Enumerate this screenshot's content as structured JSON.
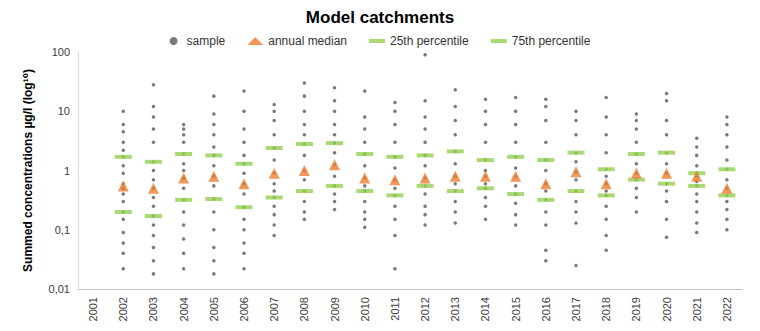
{
  "chart_data": {
    "type": "scatter",
    "title": "Model catchments",
    "y_label": "Summed concentrations µg/l (log¹⁰)",
    "log": "y",
    "grid": false,
    "legend": "top",
    "categories": [
      "2001",
      "2002",
      "2003",
      "2004",
      "2005",
      "2006",
      "2007",
      "2008",
      "2009",
      "2010",
      "2011",
      "2012",
      "2013",
      "2014",
      "2015",
      "2016",
      "2017",
      "2018",
      "2019",
      "2020",
      "2021",
      "2022"
    ],
    "ylim": [
      0.01,
      100
    ],
    "yticks": [
      {
        "value": 0.01,
        "label": "0,01"
      },
      {
        "value": 0.1,
        "label": "0,1"
      },
      1,
      10,
      100
    ],
    "series": [
      {
        "name": "sample",
        "marker": "circle",
        "color": "#595959",
        "values": [
          [],
          [
            10,
            6,
            4.5,
            3,
            2.2,
            1.7,
            1.2,
            0.9,
            0.6,
            0.5,
            0.4,
            0.3,
            0.2,
            0.15,
            0.09,
            0.06,
            0.04,
            0.022
          ],
          [
            28,
            12,
            8,
            5,
            3,
            1.4,
            1,
            0.7,
            0.5,
            0.35,
            0.25,
            0.17,
            0.12,
            0.08,
            0.05,
            0.03,
            0.018
          ],
          [
            6,
            5,
            4,
            3,
            1.9,
            1.3,
            1,
            0.75,
            0.5,
            0.32,
            0.2,
            0.12,
            0.07,
            0.04,
            0.022
          ],
          [
            18,
            9,
            6,
            4,
            2.5,
            1.8,
            1.2,
            0.8,
            0.55,
            0.33,
            0.2,
            0.1,
            0.05,
            0.03,
            0.018
          ],
          [
            22,
            10,
            5,
            3,
            1.8,
            1.3,
            0.9,
            0.6,
            0.4,
            0.24,
            0.15,
            0.1,
            0.06,
            0.04,
            0.022
          ],
          [
            13,
            10,
            7,
            4,
            2.4,
            1.5,
            0.9,
            0.6,
            0.45,
            0.35,
            0.25,
            0.18,
            0.12,
            0.08
          ],
          [
            30,
            18,
            10,
            6,
            4,
            2.8,
            1.8,
            1,
            0.7,
            0.45,
            0.3,
            0.2,
            0.15
          ],
          [
            25,
            15,
            10,
            6,
            4,
            2.9,
            2,
            1.25,
            0.8,
            0.55,
            0.4,
            0.3,
            0.22
          ],
          [
            22,
            8,
            5,
            3,
            1.9,
            1.2,
            0.75,
            0.55,
            0.45,
            0.3,
            0.2,
            0.15,
            0.11
          ],
          [
            14,
            10,
            6,
            3,
            1.7,
            1.1,
            0.7,
            0.5,
            0.38,
            0.25,
            0.15,
            0.08,
            0.022
          ],
          [
            90,
            15,
            8,
            5,
            3,
            1.8,
            1.2,
            0.75,
            0.55,
            0.4,
            0.25,
            0.18,
            0.12
          ],
          [
            23,
            12,
            7,
            4,
            2.1,
            1.3,
            0.8,
            0.6,
            0.45,
            0.3,
            0.2,
            0.13
          ],
          [
            16,
            10,
            6,
            3,
            1.5,
            1,
            0.8,
            0.6,
            0.5,
            0.35,
            0.25,
            0.15
          ],
          [
            17,
            10,
            6,
            3,
            1.7,
            1.1,
            0.8,
            0.55,
            0.4,
            0.28,
            0.18,
            0.12
          ],
          [
            16,
            12,
            7,
            3,
            1.5,
            1,
            0.6,
            0.45,
            0.32,
            0.2,
            0.12,
            0.045,
            0.03
          ],
          [
            10,
            7,
            4,
            2,
            1.4,
            0.95,
            0.7,
            0.45,
            0.3,
            0.2,
            0.13,
            0.025
          ],
          [
            17,
            8,
            4,
            2,
            1.05,
            0.8,
            0.6,
            0.45,
            0.38,
            0.25,
            0.15,
            0.08,
            0.045
          ],
          [
            9,
            7,
            5,
            3,
            1.9,
            1.3,
            0.9,
            0.7,
            0.5,
            0.35,
            0.2
          ],
          [
            20,
            15,
            7,
            4,
            2,
            1.3,
            0.9,
            0.6,
            0.45,
            0.3,
            0.15,
            0.075
          ],
          [
            3.5,
            2.5,
            1.8,
            1.2,
            0.9,
            0.8,
            0.65,
            0.55,
            0.4,
            0.3,
            0.2,
            0.13,
            0.09
          ],
          [
            8,
            6,
            4,
            2.5,
            1.5,
            1.05,
            0.7,
            0.5,
            0.38,
            0.3,
            0.22,
            0.15,
            0.1
          ]
        ]
      },
      {
        "name": "annual median",
        "marker": "triangle",
        "color": "#ed7d31",
        "values": [
          null,
          0.55,
          0.5,
          0.75,
          0.8,
          0.6,
          0.9,
          1.0,
          1.25,
          0.75,
          0.7,
          0.75,
          0.8,
          0.8,
          0.8,
          0.6,
          0.95,
          0.6,
          0.9,
          0.9,
          0.8,
          0.5
        ]
      },
      {
        "name": "25th percentile",
        "marker": "dash",
        "color": "#92d050",
        "values": [
          null,
          0.2,
          0.17,
          0.32,
          0.33,
          0.24,
          0.35,
          0.45,
          0.55,
          0.45,
          0.38,
          0.55,
          0.45,
          0.5,
          0.4,
          0.32,
          0.45,
          0.38,
          0.7,
          0.6,
          0.55,
          0.38
        ]
      },
      {
        "name": "75th percentile",
        "marker": "dash",
        "color": "#92d050",
        "values": [
          null,
          1.7,
          1.4,
          1.9,
          1.8,
          1.3,
          2.4,
          2.8,
          2.9,
          1.9,
          1.7,
          1.8,
          2.1,
          1.5,
          1.7,
          1.5,
          2.0,
          1.05,
          1.9,
          2.0,
          0.9,
          1.05
        ]
      }
    ]
  }
}
